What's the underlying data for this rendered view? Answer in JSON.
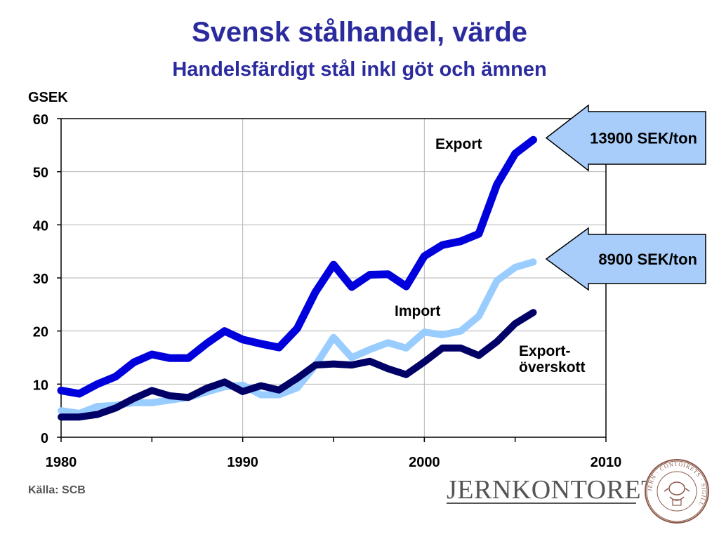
{
  "title": "Svensk stålhandel, värde",
  "subtitle": "Handelsfärdigt stål inkl göt och ämnen",
  "source": "Källa: SCB",
  "logo_text": "JERNKONTORET",
  "seal_text": "JERN · CONTOIRETS · SIGILL",
  "chart_data": {
    "type": "line",
    "ylabel": "GSEK",
    "xlim": [
      1980,
      2010
    ],
    "ylim": [
      0,
      60
    ],
    "xticks": [
      1980,
      1990,
      2000,
      2010
    ],
    "yticks": [
      0,
      10,
      20,
      30,
      40,
      50,
      60
    ],
    "grid": true,
    "x": [
      1980,
      1981,
      1982,
      1983,
      1984,
      1985,
      1986,
      1987,
      1988,
      1989,
      1990,
      1991,
      1992,
      1993,
      1994,
      1995,
      1996,
      1997,
      1998,
      1999,
      2000,
      2001,
      2002,
      2003,
      2004,
      2005,
      2006
    ],
    "series": [
      {
        "name": "Import",
        "color": "#99ccff",
        "values": [
          5.0,
          4.5,
          5.8,
          6.0,
          6.5,
          6.5,
          7.0,
          7.5,
          8.5,
          9.5,
          9.8,
          8.0,
          8.0,
          9.3,
          13.5,
          18.8,
          15.0,
          16.5,
          17.8,
          16.8,
          19.8,
          19.3,
          20.0,
          22.8,
          29.5,
          32.0,
          33.0
        ]
      },
      {
        "name": "Export-\növerskott",
        "color": "#000066",
        "values": [
          3.8,
          3.8,
          4.3,
          5.5,
          7.3,
          8.8,
          7.8,
          7.5,
          9.2,
          10.4,
          8.6,
          9.7,
          8.9,
          11.1,
          13.6,
          13.8,
          13.6,
          14.3,
          12.9,
          11.8,
          14.2,
          16.8,
          16.8,
          15.4,
          18.0,
          21.4,
          23.5
        ]
      },
      {
        "name": "Export",
        "color": "#0000dd",
        "values": [
          8.8,
          8.2,
          10.0,
          11.4,
          14.1,
          15.6,
          14.9,
          14.9,
          17.6,
          20.0,
          18.4,
          17.6,
          16.9,
          20.5,
          27.3,
          32.5,
          28.3,
          30.6,
          30.7,
          28.4,
          34.1,
          36.2,
          36.9,
          38.3,
          47.6,
          53.4,
          56.0
        ]
      }
    ],
    "callouts": [
      {
        "text": "13900 SEK/ton",
        "series": "Export"
      },
      {
        "text": "8900 SEK/ton",
        "series": "Import"
      }
    ]
  }
}
